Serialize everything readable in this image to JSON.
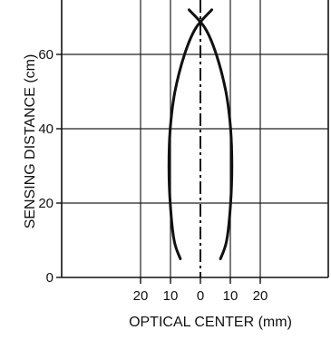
{
  "chart_data": {
    "type": "line",
    "title": "",
    "xlabel": "OPTICAL CENTER (mm)",
    "ylabel": "SENSING DISTANCE (cm)",
    "xlim": [
      -30,
      30
    ],
    "ylim": [
      0,
      72
    ],
    "x_ticks": [
      -20,
      -10,
      0,
      10,
      20
    ],
    "x_tick_labels": [
      "20",
      "10",
      "0",
      "10",
      "20"
    ],
    "y_ticks": [
      0,
      20,
      40,
      60
    ],
    "y_tick_labels": [
      "0",
      "20",
      "40",
      "60"
    ],
    "grid": true,
    "legend": "none",
    "center_line_x": 0,
    "series": [
      {
        "points": [
          [
            -6.7,
            5
          ],
          [
            -8.8,
            10
          ],
          [
            -10.1,
            20
          ],
          [
            -10.5,
            30
          ],
          [
            -10.1,
            40
          ],
          [
            -8.5,
            50
          ],
          [
            -5.3,
            60
          ],
          [
            -1.6,
            67
          ],
          [
            3.8,
            72
          ]
        ]
      },
      {
        "points": [
          [
            6.7,
            5
          ],
          [
            8.8,
            10
          ],
          [
            10.1,
            20
          ],
          [
            10.5,
            30
          ],
          [
            10.1,
            40
          ],
          [
            8.5,
            50
          ],
          [
            5.3,
            60
          ],
          [
            1.6,
            67
          ],
          [
            -3.8,
            72
          ]
        ]
      }
    ]
  }
}
